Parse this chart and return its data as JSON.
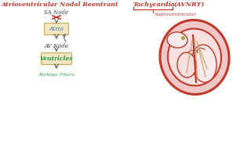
{
  "bg_color": "#ffffff",
  "title_left": "Atrioventricular Nodal Reentrant",
  "title_right_1": "Tachycardia",
  "title_right_2": "(AVNRT)",
  "title_color": "#c0392b",
  "subtitle": "Supraventricular",
  "subtitle_color": "#c0392b",
  "sa_node_label": "SA Node",
  "atria_label": "Atria",
  "av_node_label": "AV Node",
  "ventricles_label": "Ventricles",
  "purkinje_label": "Purkinje Fibers",
  "box_color": "#f5e6c0",
  "box_edge_color": "#c8a850",
  "label_color_blue": "#3a7fc1",
  "label_color_green": "#2a9a50",
  "arrow_color": "#666666",
  "x_color": "#c0392b",
  "heart_outer_color": "#c0392b",
  "heart_fill": "#f0c8c8",
  "heart_inner_fill": "#f9e0e0",
  "heart_chamber_fill": "#faeaea",
  "tan_color": "#c8a070"
}
